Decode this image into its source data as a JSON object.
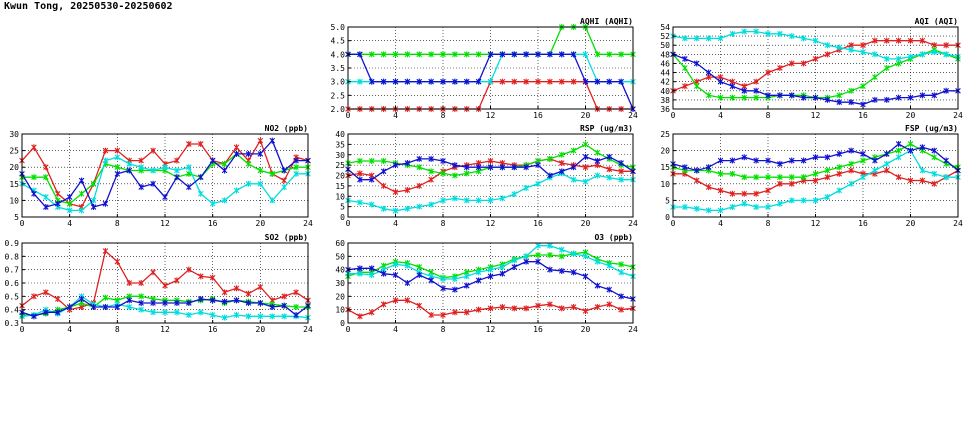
{
  "page": {
    "title": "Kwun Tong, 20250530-20250602"
  },
  "chart_data": [
    {
      "id": "no2",
      "type": "line",
      "title": "NO2 (ppb)",
      "x": [
        0,
        1,
        2,
        3,
        4,
        5,
        6,
        7,
        8,
        9,
        10,
        11,
        12,
        13,
        14,
        15,
        16,
        17,
        18,
        19,
        20,
        21,
        22,
        23,
        24
      ],
      "xticks": [
        0,
        4,
        8,
        12,
        16,
        20,
        24
      ],
      "xlim": [
        0,
        24
      ],
      "ylim": [
        5,
        30
      ],
      "yticks": [
        5,
        10,
        15,
        20,
        25,
        30
      ],
      "grid": true,
      "series": [
        {
          "color": "#e02020",
          "values": [
            22,
            26,
            20,
            12,
            9,
            8,
            15,
            25,
            25,
            22,
            22,
            25,
            21,
            22,
            27,
            27,
            22,
            21,
            26,
            22,
            28,
            18,
            16,
            23,
            22
          ]
        },
        {
          "color": "#00e000",
          "values": [
            17,
            17,
            17,
            10,
            9,
            12,
            15,
            21,
            20,
            19,
            19,
            19,
            19,
            17,
            18,
            17,
            21,
            21,
            24,
            21,
            19,
            18,
            19,
            20,
            20
          ]
        },
        {
          "color": "#00dddd",
          "values": [
            15,
            13,
            11,
            8,
            7,
            7,
            10,
            22,
            23,
            21,
            20,
            19,
            20,
            19,
            20,
            12,
            9,
            10,
            13,
            15,
            15,
            10,
            14,
            18,
            18
          ]
        },
        {
          "color": "#1010d0",
          "values": [
            18,
            12,
            8,
            9,
            11,
            16,
            8,
            9,
            18,
            19,
            14,
            15,
            11,
            17,
            14,
            17,
            22,
            19,
            24,
            24,
            24,
            28,
            19,
            22,
            22
          ]
        }
      ]
    },
    {
      "id": "so2",
      "type": "line",
      "title": "SO2 (ppb)",
      "x": [
        0,
        1,
        2,
        3,
        4,
        5,
        6,
        7,
        8,
        9,
        10,
        11,
        12,
        13,
        14,
        15,
        16,
        17,
        18,
        19,
        20,
        21,
        22,
        23,
        24
      ],
      "xticks": [
        0,
        4,
        8,
        12,
        16,
        20,
        24
      ],
      "xlim": [
        0,
        24
      ],
      "ylim": [
        0.3,
        0.9
      ],
      "yticks": [
        0.3,
        0.4,
        0.5,
        0.6,
        0.7,
        0.8,
        0.9
      ],
      "grid": true,
      "series": [
        {
          "color": "#e02020",
          "values": [
            0.43,
            0.5,
            0.53,
            0.48,
            0.4,
            0.42,
            0.45,
            0.84,
            0.76,
            0.6,
            0.6,
            0.68,
            0.58,
            0.62,
            0.7,
            0.65,
            0.64,
            0.53,
            0.56,
            0.52,
            0.57,
            0.47,
            0.5,
            0.53,
            0.47
          ]
        },
        {
          "color": "#00e000",
          "values": [
            0.36,
            0.36,
            0.37,
            0.4,
            0.42,
            0.45,
            0.42,
            0.49,
            0.47,
            0.5,
            0.5,
            0.48,
            0.47,
            0.47,
            0.46,
            0.47,
            0.48,
            0.45,
            0.47,
            0.46,
            0.45,
            0.44,
            0.43,
            0.42,
            0.42
          ]
        },
        {
          "color": "#00dddd",
          "values": [
            0.35,
            0.36,
            0.4,
            0.37,
            0.42,
            0.5,
            0.44,
            0.42,
            0.44,
            0.42,
            0.4,
            0.38,
            0.38,
            0.38,
            0.36,
            0.38,
            0.36,
            0.34,
            0.36,
            0.35,
            0.35,
            0.35,
            0.35,
            0.35,
            0.34
          ]
        },
        {
          "color": "#1010d0",
          "values": [
            0.38,
            0.35,
            0.38,
            0.38,
            0.42,
            0.48,
            0.42,
            0.42,
            0.42,
            0.47,
            0.45,
            0.45,
            0.45,
            0.45,
            0.45,
            0.48,
            0.47,
            0.46,
            0.47,
            0.45,
            0.45,
            0.42,
            0.43,
            0.36,
            0.43
          ]
        }
      ]
    },
    {
      "id": "aqhi",
      "type": "line",
      "title": "AQHI (AQHI)",
      "x": [
        0,
        1,
        2,
        3,
        4,
        5,
        6,
        7,
        8,
        9,
        10,
        11,
        12,
        13,
        14,
        15,
        16,
        17,
        18,
        19,
        20,
        21,
        22,
        23,
        24
      ],
      "xticks": [
        0,
        4,
        8,
        12,
        16,
        20,
        24
      ],
      "xlim": [
        0,
        24
      ],
      "ylim": [
        2.0,
        5.0
      ],
      "yticks": [
        2.0,
        2.5,
        3.0,
        3.5,
        4.0,
        4.5,
        5.0
      ],
      "grid": true,
      "series": [
        {
          "color": "#e02020",
          "values": [
            2,
            2,
            2,
            2,
            2,
            2,
            2,
            2,
            2,
            2,
            2,
            2,
            3,
            3,
            3,
            3,
            3,
            3,
            3,
            3,
            3,
            2,
            2,
            2,
            2
          ]
        },
        {
          "color": "#00e000",
          "values": [
            4,
            4,
            4,
            4,
            4,
            4,
            4,
            4,
            4,
            4,
            4,
            4,
            4,
            4,
            4,
            4,
            4,
            4,
            5,
            5,
            5,
            4,
            4,
            4,
            4
          ]
        },
        {
          "color": "#00dddd",
          "values": [
            3,
            3,
            3,
            3,
            3,
            3,
            3,
            3,
            3,
            3,
            3,
            3,
            3,
            4,
            4,
            4,
            4,
            4,
            4,
            4,
            4,
            3,
            3,
            3,
            3
          ]
        },
        {
          "color": "#1010d0",
          "values": [
            4,
            4,
            3,
            3,
            3,
            3,
            3,
            3,
            3,
            3,
            3,
            3,
            4,
            4,
            4,
            4,
            4,
            4,
            4,
            4,
            3,
            3,
            3,
            3,
            2
          ]
        }
      ]
    },
    {
      "id": "rsp",
      "type": "line",
      "title": "RSP (ug/m3)",
      "x": [
        0,
        1,
        2,
        3,
        4,
        5,
        6,
        7,
        8,
        9,
        10,
        11,
        12,
        13,
        14,
        15,
        16,
        17,
        18,
        19,
        20,
        21,
        22,
        23,
        24
      ],
      "xticks": [
        0,
        4,
        8,
        12,
        16,
        20,
        24
      ],
      "xlim": [
        0,
        24
      ],
      "ylim": [
        0,
        40
      ],
      "yticks": [
        0,
        5,
        10,
        15,
        20,
        25,
        30,
        35,
        40
      ],
      "grid": true,
      "series": [
        {
          "color": "#e02020",
          "values": [
            20,
            21,
            20,
            15,
            12,
            13,
            15,
            18,
            22,
            24,
            25,
            26,
            27,
            26,
            25,
            25,
            27,
            28,
            26,
            25,
            24,
            25,
            23,
            22,
            22
          ]
        },
        {
          "color": "#00e000",
          "values": [
            26,
            27,
            27,
            27,
            26,
            25,
            24,
            22,
            21,
            20,
            21,
            22,
            24,
            24,
            24,
            25,
            27,
            28,
            30,
            32,
            35,
            31,
            28,
            25,
            24
          ]
        },
        {
          "color": "#00dddd",
          "values": [
            8,
            7,
            6,
            4,
            3,
            4,
            5,
            6,
            8,
            9,
            8,
            8,
            8,
            9,
            11,
            14,
            16,
            19,
            21,
            18,
            17,
            20,
            19,
            18,
            18
          ]
        },
        {
          "color": "#1010d0",
          "values": [
            23,
            18,
            18,
            22,
            25,
            26,
            28,
            28,
            27,
            25,
            24,
            24,
            24,
            24,
            24,
            24,
            25,
            20,
            22,
            24,
            29,
            27,
            29,
            26,
            22
          ]
        }
      ]
    },
    {
      "id": "o3",
      "type": "line",
      "title": "O3 (ppb)",
      "x": [
        0,
        1,
        2,
        3,
        4,
        5,
        6,
        7,
        8,
        9,
        10,
        11,
        12,
        13,
        14,
        15,
        16,
        17,
        18,
        19,
        20,
        21,
        22,
        23,
        24
      ],
      "xticks": [
        0,
        4,
        8,
        12,
        16,
        20,
        24
      ],
      "xlim": [
        0,
        24
      ],
      "ylim": [
        0,
        60
      ],
      "yticks": [
        0,
        10,
        20,
        30,
        40,
        50,
        60
      ],
      "grid": true,
      "series": [
        {
          "color": "#e02020",
          "values": [
            10,
            5,
            8,
            14,
            17,
            17,
            13,
            6,
            6,
            8,
            8,
            10,
            11,
            12,
            11,
            11,
            13,
            14,
            11,
            12,
            9,
            12,
            14,
            10,
            11
          ]
        },
        {
          "color": "#00e000",
          "values": [
            35,
            38,
            38,
            43,
            46,
            45,
            42,
            38,
            34,
            35,
            38,
            40,
            42,
            44,
            48,
            50,
            51,
            51,
            50,
            52,
            53,
            48,
            45,
            44,
            42
          ]
        },
        {
          "color": "#00dddd",
          "values": [
            37,
            37,
            36,
            40,
            44,
            43,
            38,
            35,
            33,
            33,
            35,
            38,
            40,
            42,
            47,
            50,
            58,
            58,
            55,
            52,
            50,
            46,
            43,
            38,
            35
          ]
        },
        {
          "color": "#1010d0",
          "values": [
            40,
            41,
            41,
            37,
            36,
            30,
            36,
            32,
            26,
            25,
            28,
            32,
            35,
            37,
            42,
            46,
            46,
            40,
            39,
            38,
            35,
            28,
            25,
            20,
            18
          ]
        }
      ]
    },
    {
      "id": "aqi",
      "type": "line",
      "title": "AQI (AQI)",
      "x": [
        0,
        1,
        2,
        3,
        4,
        5,
        6,
        7,
        8,
        9,
        10,
        11,
        12,
        13,
        14,
        15,
        16,
        17,
        18,
        19,
        20,
        21,
        22,
        23,
        24
      ],
      "xticks": [
        0,
        4,
        8,
        12,
        16,
        20,
        24
      ],
      "xlim": [
        0,
        24
      ],
      "ylim": [
        36,
        54
      ],
      "yticks": [
        36,
        38,
        40,
        42,
        44,
        46,
        48,
        50,
        52,
        54
      ],
      "grid": true,
      "series": [
        {
          "color": "#e02020",
          "values": [
            40,
            41,
            42,
            43,
            43,
            42,
            41,
            42,
            44,
            45,
            46,
            46,
            47,
            48,
            49,
            50,
            50,
            51,
            51,
            51,
            51,
            51,
            50,
            50,
            50
          ]
        },
        {
          "color": "#00e000",
          "values": [
            48,
            45,
            41,
            39,
            38.5,
            38.5,
            38.5,
            38.5,
            38.5,
            39,
            39,
            39,
            38.5,
            38.5,
            39,
            40,
            41,
            43,
            45,
            46,
            47,
            48,
            49,
            48,
            47
          ]
        },
        {
          "color": "#00dddd",
          "values": [
            52,
            51.5,
            51.5,
            51.5,
            51.5,
            52.5,
            53,
            53,
            52.5,
            52.5,
            52,
            51.5,
            51,
            50,
            49.5,
            49,
            48.5,
            48,
            47,
            47,
            47.5,
            48,
            48.5,
            48,
            47.5
          ]
        },
        {
          "color": "#1010d0",
          "values": [
            48,
            47,
            46,
            44,
            42,
            41,
            40,
            40,
            39,
            39,
            39,
            38.5,
            38.5,
            38,
            37.5,
            37.5,
            37,
            38,
            38,
            38.5,
            38.5,
            39,
            39,
            40,
            40
          ]
        }
      ]
    },
    {
      "id": "fsp",
      "type": "line",
      "title": "FSP (ug/m3)",
      "x": [
        0,
        1,
        2,
        3,
        4,
        5,
        6,
        7,
        8,
        9,
        10,
        11,
        12,
        13,
        14,
        15,
        16,
        17,
        18,
        19,
        20,
        21,
        22,
        23,
        24
      ],
      "xticks": [
        0,
        4,
        8,
        12,
        16,
        20,
        24
      ],
      "xlim": [
        0,
        24
      ],
      "ylim": [
        0,
        25
      ],
      "yticks": [
        0,
        5,
        10,
        15,
        20,
        25
      ],
      "grid": true,
      "series": [
        {
          "color": "#e02020",
          "values": [
            13,
            13,
            11,
            9,
            8,
            7,
            7,
            7,
            8,
            10,
            10,
            11,
            11,
            12,
            13,
            14,
            13,
            13,
            14,
            12,
            11,
            11,
            10,
            12,
            14
          ]
        },
        {
          "color": "#00e000",
          "values": [
            15,
            14,
            14,
            14,
            13,
            13,
            12,
            12,
            12,
            12,
            12,
            12,
            13,
            14,
            15,
            16,
            17,
            18,
            19,
            20,
            22,
            20,
            18,
            16,
            15
          ]
        },
        {
          "color": "#00dddd",
          "values": [
            3,
            3,
            2.5,
            2,
            2,
            3,
            4,
            3,
            3,
            4,
            5,
            5,
            5,
            6,
            8,
            10,
            12,
            14,
            16,
            18,
            20,
            14,
            13,
            12,
            12
          ]
        },
        {
          "color": "#1010d0",
          "values": [
            16,
            15,
            14,
            15,
            17,
            17,
            18,
            17,
            17,
            16,
            17,
            17,
            18,
            18,
            19,
            20,
            19,
            17,
            19,
            22,
            20,
            21,
            20,
            17,
            14
          ]
        }
      ]
    }
  ]
}
